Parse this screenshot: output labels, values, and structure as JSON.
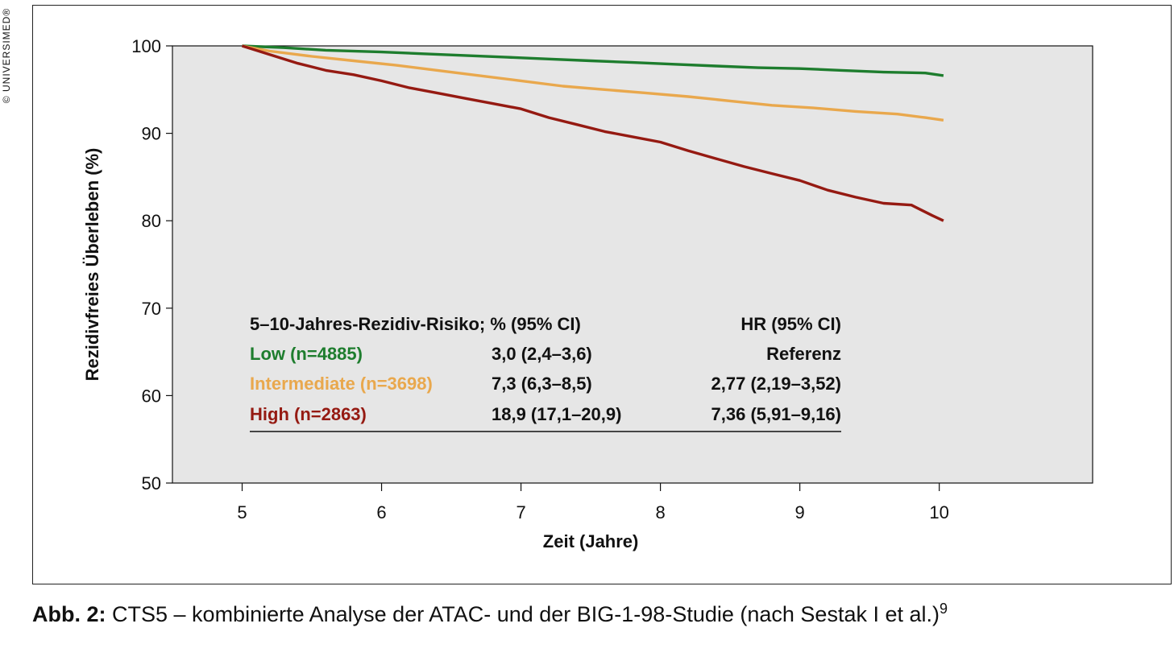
{
  "copyright": "© UNIVERSIMED®",
  "caption": {
    "label": "Abb. 2:",
    "text": "CTS5 – kombinierte Analyse der ATAC- und der BIG-1-98-Studie (nach Sestak I et al.)",
    "ref": "9"
  },
  "chart_data": {
    "type": "line",
    "xlabel": "Zeit (Jahre)",
    "ylabel": "Rezidivfreies Überleben (%)",
    "xlim": [
      4.5,
      11.1
    ],
    "ylim": [
      50,
      100
    ],
    "xticks": [
      5,
      6,
      7,
      8,
      9,
      10
    ],
    "yticks": [
      50,
      60,
      70,
      80,
      90,
      100
    ],
    "grid": false,
    "background": "#e6e6e6",
    "series": [
      {
        "name": "Low (n=4885)",
        "color": "#1e7d2e",
        "x": [
          5.0,
          5.3,
          5.6,
          6.0,
          6.3,
          6.6,
          6.9,
          7.2,
          7.5,
          7.8,
          8.1,
          8.4,
          8.7,
          9.0,
          9.3,
          9.6,
          9.9,
          10.03
        ],
        "y": [
          100,
          99.8,
          99.5,
          99.3,
          99.1,
          98.9,
          98.7,
          98.5,
          98.3,
          98.1,
          97.9,
          97.7,
          97.5,
          97.4,
          97.2,
          97.0,
          96.9,
          96.6
        ]
      },
      {
        "name": "Intermediate (n=3698)",
        "color": "#e9a84d",
        "x": [
          5.0,
          5.2,
          5.5,
          5.8,
          6.1,
          6.4,
          6.7,
          7.0,
          7.3,
          7.6,
          7.9,
          8.2,
          8.5,
          8.8,
          9.1,
          9.4,
          9.7,
          9.9,
          10.03
        ],
        "y": [
          100,
          99.4,
          98.8,
          98.3,
          97.8,
          97.2,
          96.6,
          96.0,
          95.4,
          95.0,
          94.6,
          94.2,
          93.7,
          93.2,
          92.9,
          92.5,
          92.2,
          91.8,
          91.5
        ]
      },
      {
        "name": "High (n=2863)",
        "color": "#951a12",
        "x": [
          5.0,
          5.2,
          5.4,
          5.6,
          5.8,
          6.0,
          6.2,
          6.4,
          6.6,
          6.8,
          7.0,
          7.2,
          7.4,
          7.6,
          7.8,
          8.0,
          8.2,
          8.4,
          8.6,
          8.8,
          9.0,
          9.2,
          9.4,
          9.6,
          9.8,
          9.95,
          10.03
        ],
        "y": [
          100,
          99.0,
          98.0,
          97.2,
          96.7,
          96.0,
          95.2,
          94.6,
          94.0,
          93.4,
          92.8,
          91.8,
          91.0,
          90.2,
          89.6,
          89.0,
          88.0,
          87.1,
          86.2,
          85.4,
          84.6,
          83.5,
          82.7,
          82.0,
          81.8,
          80.6,
          80.0
        ]
      }
    ]
  },
  "risk_table": {
    "header": {
      "label": "5–10-Jahres-Rezidiv-Risiko; % (95% CI)",
      "hr": "HR (95% CI)"
    },
    "rows": [
      {
        "group": "Low (n=4885)",
        "risk": "3,0 (2,4–3,6)",
        "hr": "Referenz",
        "color": "#1e7d2e"
      },
      {
        "group": "Intermediate (n=3698)",
        "risk": "7,3 (6,3–8,5)",
        "hr": "2,77 (2,19–3,52)",
        "color": "#e9a84d"
      },
      {
        "group": "High (n=2863)",
        "risk": "18,9 (17,1–20,9)",
        "hr": "7,36 (5,91–9,16)",
        "color": "#951a12"
      }
    ]
  }
}
